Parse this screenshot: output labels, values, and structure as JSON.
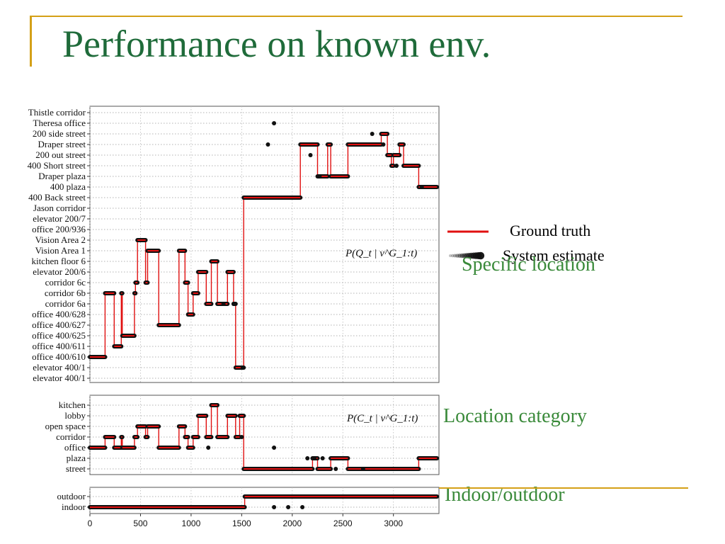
{
  "slide": {
    "title": "Performance on known env.",
    "title_color": "#1f6b3a",
    "accent_color": "#d4a017",
    "label_color": "#3a8a3a"
  },
  "legend": {
    "ground_truth": "Ground truth",
    "system_estimate": "System estimate",
    "ground_truth_color": "#e01010",
    "estimate_color": "#111111"
  },
  "labels": {
    "specific": "Specific location",
    "category": "Location category",
    "indoor": "Indoor/outdoor"
  },
  "chart_data": [
    {
      "type": "line",
      "annotation": "P(Q_t | v^G_1:t)",
      "xlim": [
        0,
        3450
      ],
      "x_ticks": [
        0,
        500,
        1000,
        1500,
        2000,
        2500,
        3000
      ],
      "grid": true,
      "categories": [
        "Thistle corridor",
        "Theresa office",
        "200 side street",
        "Draper street",
        "200 out street",
        "400 Short street",
        "Draper plaza",
        "400 plaza",
        "400 Back street",
        "Jason corridor",
        "elevator 200/7",
        "office 200/936",
        "Vision Area 2",
        "Vision Area 1",
        "kitchen floor 6",
        "elevator 200/6",
        "corridor 6c",
        "corridor 6b",
        "corridor 6a",
        "office 400/628",
        "office 400/627",
        "office 400/625",
        "office 400/611",
        "office 400/610",
        "elevator 400/1",
        "elevator 400/1"
      ],
      "series": [
        {
          "name": "Ground truth",
          "style": "step",
          "points": [
            [
              0,
              23
            ],
            [
              150,
              23
            ],
            [
              150,
              17
            ],
            [
              240,
              17
            ],
            [
              240,
              22
            ],
            [
              310,
              22
            ],
            [
              310,
              17
            ],
            [
              320,
              17
            ],
            [
              320,
              21
            ],
            [
              440,
              21
            ],
            [
              440,
              17
            ],
            [
              450,
              17
            ],
            [
              450,
              16
            ],
            [
              470,
              16
            ],
            [
              470,
              12
            ],
            [
              550,
              12
            ],
            [
              550,
              16
            ],
            [
              570,
              16
            ],
            [
              570,
              13
            ],
            [
              680,
              13
            ],
            [
              680,
              20
            ],
            [
              880,
              20
            ],
            [
              880,
              13
            ],
            [
              940,
              13
            ],
            [
              940,
              16
            ],
            [
              970,
              16
            ],
            [
              970,
              19
            ],
            [
              1020,
              19
            ],
            [
              1020,
              17
            ],
            [
              1070,
              17
            ],
            [
              1070,
              15
            ],
            [
              1150,
              15
            ],
            [
              1150,
              18
            ],
            [
              1200,
              18
            ],
            [
              1200,
              14
            ],
            [
              1260,
              14
            ],
            [
              1260,
              18
            ],
            [
              1360,
              18
            ],
            [
              1360,
              15
            ],
            [
              1420,
              15
            ],
            [
              1420,
              18
            ],
            [
              1440,
              18
            ],
            [
              1440,
              24
            ],
            [
              1520,
              24
            ],
            [
              1520,
              8
            ],
            [
              2080,
              8
            ],
            [
              2080,
              3
            ],
            [
              2250,
              3
            ],
            [
              2250,
              6
            ],
            [
              2350,
              6
            ],
            [
              2350,
              3
            ],
            [
              2380,
              3
            ],
            [
              2380,
              6
            ],
            [
              2550,
              6
            ],
            [
              2550,
              3
            ],
            [
              2880,
              3
            ],
            [
              2880,
              2
            ],
            [
              2940,
              2
            ],
            [
              2940,
              4
            ],
            [
              2980,
              4
            ],
            [
              2980,
              5
            ],
            [
              3000,
              5
            ],
            [
              3000,
              4
            ],
            [
              3060,
              4
            ],
            [
              3060,
              3
            ],
            [
              3100,
              3
            ],
            [
              3100,
              5
            ],
            [
              3250,
              5
            ],
            [
              3250,
              7
            ],
            [
              3430,
              7
            ]
          ]
        },
        {
          "name": "System estimate",
          "style": "points",
          "points": [
            [
              1820,
              1
            ],
            [
              1760,
              3
            ],
            [
              2900,
              3
            ],
            [
              2790,
              2
            ],
            [
              2180,
              4
            ],
            [
              2270,
              6
            ],
            [
              3030,
              5
            ],
            [
              3280,
              7
            ],
            [
              1320,
              18
            ],
            [
              1420,
              18
            ],
            [
              1510,
              24
            ]
          ]
        }
      ]
    },
    {
      "type": "line",
      "annotation": "P(C_t | v^G_1:t)",
      "xlim": [
        0,
        3450
      ],
      "x_ticks": [
        0,
        500,
        1000,
        1500,
        2000,
        2500,
        3000
      ],
      "grid": true,
      "categories": [
        "kitchen",
        "lobby",
        "open space",
        "corridor",
        "office",
        "plaza",
        "street"
      ],
      "series": [
        {
          "name": "Ground truth",
          "style": "step",
          "points": [
            [
              0,
              4
            ],
            [
              150,
              4
            ],
            [
              150,
              3
            ],
            [
              240,
              3
            ],
            [
              240,
              4
            ],
            [
              310,
              4
            ],
            [
              310,
              3
            ],
            [
              320,
              3
            ],
            [
              320,
              4
            ],
            [
              440,
              4
            ],
            [
              440,
              3
            ],
            [
              470,
              3
            ],
            [
              470,
              2
            ],
            [
              550,
              2
            ],
            [
              550,
              3
            ],
            [
              570,
              3
            ],
            [
              570,
              2
            ],
            [
              680,
              2
            ],
            [
              680,
              4
            ],
            [
              880,
              4
            ],
            [
              880,
              2
            ],
            [
              940,
              2
            ],
            [
              940,
              3
            ],
            [
              970,
              3
            ],
            [
              970,
              4
            ],
            [
              1020,
              4
            ],
            [
              1020,
              3
            ],
            [
              1070,
              3
            ],
            [
              1070,
              1
            ],
            [
              1150,
              1
            ],
            [
              1150,
              3
            ],
            [
              1200,
              3
            ],
            [
              1200,
              0
            ],
            [
              1260,
              0
            ],
            [
              1260,
              3
            ],
            [
              1360,
              3
            ],
            [
              1360,
              1
            ],
            [
              1440,
              1
            ],
            [
              1440,
              3
            ],
            [
              1480,
              3
            ],
            [
              1480,
              1
            ],
            [
              1520,
              1
            ],
            [
              1520,
              6
            ],
            [
              2200,
              6
            ],
            [
              2200,
              5
            ],
            [
              2250,
              5
            ],
            [
              2250,
              6
            ],
            [
              2380,
              6
            ],
            [
              2380,
              5
            ],
            [
              2550,
              5
            ],
            [
              2550,
              6
            ],
            [
              3250,
              6
            ],
            [
              3250,
              5
            ],
            [
              3430,
              5
            ]
          ]
        },
        {
          "name": "System estimate",
          "style": "points",
          "points": [
            [
              1820,
              4
            ],
            [
              2150,
              5
            ],
            [
              2220,
              5
            ],
            [
              2300,
              5
            ],
            [
              2430,
              6
            ],
            [
              1170,
              4
            ],
            [
              1500,
              3
            ],
            [
              2700,
              6
            ]
          ]
        }
      ]
    },
    {
      "type": "line",
      "xlim": [
        0,
        3450
      ],
      "x_ticks": [
        0,
        500,
        1000,
        1500,
        2000,
        2500,
        3000
      ],
      "x_tick_labels": [
        "0",
        "500",
        "1000",
        "1500",
        "2000",
        "2500",
        "3000"
      ],
      "grid": true,
      "categories": [
        "outdoor",
        "indoor"
      ],
      "series": [
        {
          "name": "Ground truth",
          "style": "step",
          "points": [
            [
              0,
              1
            ],
            [
              1530,
              1
            ],
            [
              1530,
              0
            ],
            [
              3430,
              0
            ]
          ]
        },
        {
          "name": "System estimate",
          "style": "points",
          "points": [
            [
              1820,
              1
            ],
            [
              1960,
              1
            ],
            [
              2100,
              1
            ]
          ]
        }
      ]
    }
  ]
}
